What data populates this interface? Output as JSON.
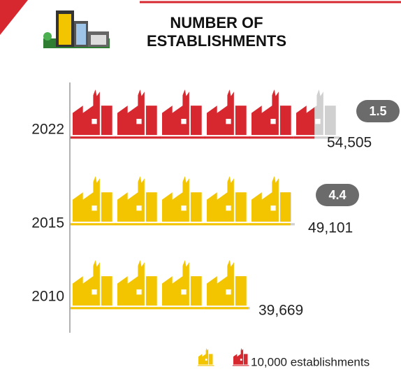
{
  "chart_data": {
    "type": "pictograph",
    "title": "NUMBER OF ESTABLISHMENTS",
    "categories": [
      "2022",
      "2015",
      "2010"
    ],
    "values": [
      54505,
      49101,
      39669
    ],
    "value_labels": [
      "54,505",
      "49,101",
      "39,669"
    ],
    "colors": [
      "#d7282f",
      "#f2c500",
      "#f2c500"
    ],
    "badges": [
      1.5,
      4.4,
      null
    ],
    "unit": 10000,
    "legend_label": "10,000 establishments"
  }
}
